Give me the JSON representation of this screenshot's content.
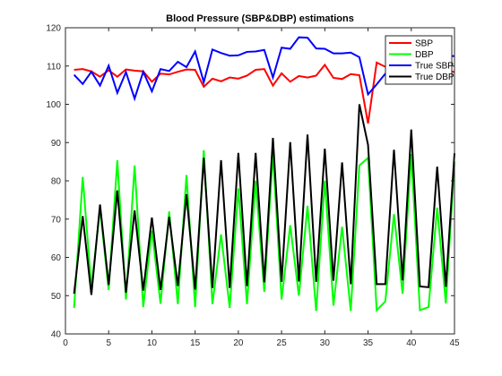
{
  "chart_data": {
    "type": "line",
    "title": "Blood Pressure (SBP&DBP) estimations",
    "xlabel": "",
    "ylabel": "",
    "xlim": [
      0,
      45
    ],
    "ylim": [
      40,
      120
    ],
    "xticks": [
      0,
      5,
      10,
      15,
      20,
      25,
      30,
      35,
      40,
      45
    ],
    "yticks": [
      40,
      50,
      60,
      70,
      80,
      90,
      100,
      110,
      120
    ],
    "grid": false,
    "legend_position": "top-right",
    "x": [
      1,
      2,
      3,
      4,
      5,
      6,
      7,
      8,
      9,
      10,
      11,
      12,
      13,
      14,
      15,
      16,
      17,
      18,
      19,
      20,
      21,
      22,
      23,
      24,
      25,
      26,
      27,
      28,
      29,
      30,
      31,
      32,
      33,
      34,
      35,
      36,
      37,
      38,
      39,
      40,
      41,
      42,
      43,
      44,
      45
    ],
    "series": [
      {
        "name": "SBP",
        "color": "#ff0000",
        "values": [
          109.0,
          109.2,
          108.6,
          107.2,
          108.9,
          107.2,
          109.1,
          108.8,
          108.6,
          105.9,
          108.0,
          107.8,
          108.5,
          109.1,
          109.0,
          104.6,
          106.7,
          106.0,
          107.0,
          106.7,
          107.5,
          109.0,
          109.2,
          104.9,
          108.1,
          105.9,
          107.4,
          107.0,
          107.5,
          110.3,
          106.9,
          106.6,
          107.9,
          107.6,
          95.0,
          110.9,
          109.8,
          109.1,
          109.0,
          109.5,
          109.5,
          109.3,
          107.8,
          109.0,
          108.4
        ]
      },
      {
        "name": "DBP",
        "color": "#00ff00",
        "values": [
          46.8,
          81.0,
          52.0,
          72.8,
          51.5,
          85.4,
          49.0,
          84.0,
          47.0,
          67.0,
          47.9,
          72.0,
          47.8,
          81.5,
          47.0,
          88.0,
          47.8,
          66.0,
          46.8,
          78.0,
          47.8,
          80.0,
          51.0,
          87.0,
          49.0,
          68.4,
          50.0,
          73.5,
          46.0,
          80.0,
          47.4,
          68.0,
          46.0,
          84.0,
          86.0,
          46.2,
          48.5,
          71.3,
          50.5,
          87.0,
          46.2,
          47.0,
          73.0,
          48.0,
          85.0
        ]
      },
      {
        "name": "True SBP",
        "color": "#0000ff",
        "values": [
          107.7,
          105.3,
          108.5,
          104.9,
          110.1,
          103.0,
          108.4,
          101.5,
          108.5,
          103.4,
          109.2,
          108.7,
          111.1,
          109.7,
          113.8,
          105.8,
          114.3,
          113.4,
          112.7,
          112.8,
          113.7,
          113.8,
          114.2,
          107.0,
          114.8,
          114.5,
          117.5,
          117.4,
          114.6,
          114.5,
          113.3,
          113.3,
          113.5,
          112.3,
          102.6,
          105.2,
          108.0,
          108.9,
          111.4,
          111.0,
          111.8,
          112.5,
          109.5,
          112.6,
          112.6
        ]
      },
      {
        "name": "True DBP",
        "color": "#000000",
        "values": [
          50.5,
          70.8,
          50.2,
          73.8,
          52.8,
          77.5,
          50.8,
          72.3,
          51.3,
          70.4,
          51.5,
          70.6,
          52.5,
          76.5,
          51.6,
          86.0,
          52.0,
          85.4,
          52.0,
          87.3,
          52.5,
          87.3,
          53.5,
          91.2,
          53.6,
          90.1,
          53.7,
          92.1,
          53.6,
          88.4,
          53.9,
          84.8,
          53.0,
          100.0,
          89.4,
          53.0,
          53.0,
          88.1,
          54.0,
          93.4,
          52.4,
          52.2,
          83.7,
          52.3,
          87.2
        ]
      }
    ]
  }
}
